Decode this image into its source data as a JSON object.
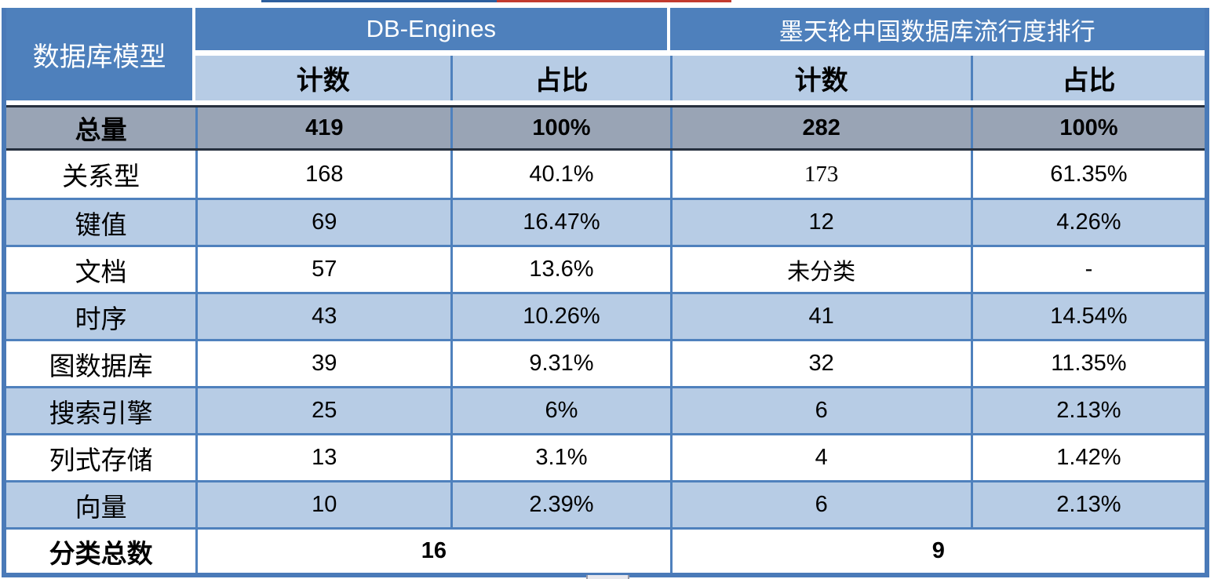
{
  "chart_data": {
    "type": "table",
    "corner_header": "数据库模型",
    "group_headers": [
      "DB-Engines",
      "墨天轮中国数据库流行度排行"
    ],
    "sub_headers": [
      "计数",
      "占比",
      "计数",
      "占比"
    ],
    "total_row": {
      "label": "总量",
      "values": [
        "419",
        "100%",
        "282",
        "100%"
      ]
    },
    "rows": [
      {
        "label": "关系型",
        "values": [
          "168",
          "40.1%",
          "173",
          "61.35%"
        ]
      },
      {
        "label": "键值",
        "values": [
          "69",
          "16.47%",
          "12",
          "4.26%"
        ]
      },
      {
        "label": "文档",
        "values": [
          "57",
          "13.6%",
          "未分类",
          "-"
        ]
      },
      {
        "label": "时序",
        "values": [
          "43",
          "10.26%",
          "41",
          "14.54%"
        ]
      },
      {
        "label": "图数据库",
        "values": [
          "39",
          "9.31%",
          "32",
          "11.35%"
        ]
      },
      {
        "label": "搜索引擎",
        "values": [
          "25",
          "6%",
          "6",
          "2.13%"
        ]
      },
      {
        "label": "列式存储",
        "values": [
          "13",
          "3.1%",
          "4",
          "1.42%"
        ]
      },
      {
        "label": "向量",
        "values": [
          "10",
          "2.39%",
          "6",
          "2.13%"
        ]
      }
    ],
    "summary_row": {
      "label": "分类总数",
      "values": [
        "16",
        "9"
      ]
    },
    "colors": {
      "header_blue": "#4e80bc",
      "sub_header_light_blue": "#b7cce5",
      "total_row_gray": "#99a4b5",
      "grid_line_blue": "#4f81bd",
      "total_row_border_dark": "#26303e",
      "text_black": "#000000",
      "header_text_white": "#ffffff"
    }
  }
}
